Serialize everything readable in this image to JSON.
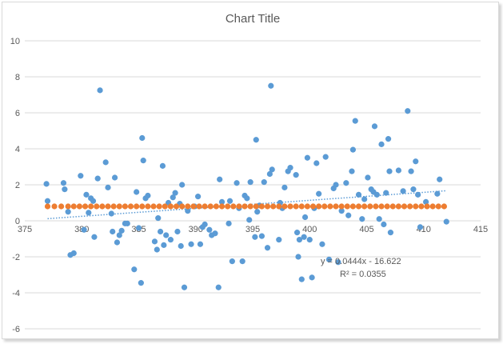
{
  "chart_data": {
    "type": "scatter",
    "title": "Chart Title",
    "xlim": [
      375,
      415
    ],
    "ylim": [
      -6,
      10
    ],
    "x_ticks": [
      375,
      380,
      385,
      390,
      395,
      400,
      405,
      410,
      415
    ],
    "y_ticks": [
      -6,
      -4,
      -2,
      0,
      2,
      4,
      6,
      8,
      10
    ],
    "x_tick_labels": [
      "375",
      "380",
      "385",
      "390",
      "395",
      "400",
      "405",
      "410",
      "415"
    ],
    "y_tick_labels": [
      "-6",
      "-4",
      "-2",
      "0",
      "2",
      "4",
      "6",
      "8",
      "10"
    ],
    "grid": true,
    "legend": false,
    "colors": {
      "series_blue": "#5b9bd5",
      "series_orange": "#ed7d31",
      "trendline": "#5b9bd5",
      "gridline": "#d9d9d9",
      "text": "#595959"
    },
    "series": [
      {
        "color": "#5b9bd5",
        "points": [
          [
            376.9,
            2.05
          ],
          [
            377.0,
            1.1
          ],
          [
            378.4,
            2.1
          ],
          [
            378.5,
            1.75
          ],
          [
            378.8,
            0.5
          ],
          [
            379.0,
            -1.9
          ],
          [
            379.3,
            -1.8
          ],
          [
            379.9,
            2.5
          ],
          [
            380.2,
            -0.5
          ],
          [
            380.4,
            1.45
          ],
          [
            380.6,
            0.45
          ],
          [
            380.8,
            1.25
          ],
          [
            381.0,
            1.1
          ],
          [
            381.1,
            -0.9
          ],
          [
            381.4,
            2.35
          ],
          [
            381.6,
            7.25
          ],
          [
            382.1,
            3.25
          ],
          [
            382.3,
            1.85
          ],
          [
            382.6,
            0.4
          ],
          [
            382.7,
            -0.6
          ],
          [
            382.9,
            2.4
          ],
          [
            383.1,
            -1.2
          ],
          [
            383.3,
            -0.8
          ],
          [
            383.5,
            -0.55
          ],
          [
            383.8,
            -0.15
          ],
          [
            384.0,
            -0.15
          ],
          [
            384.6,
            -2.7
          ],
          [
            384.8,
            1.6
          ],
          [
            385.0,
            -0.4
          ],
          [
            385.2,
            -3.45
          ],
          [
            385.3,
            4.6
          ],
          [
            385.4,
            3.35
          ],
          [
            385.6,
            1.25
          ],
          [
            385.8,
            1.4
          ],
          [
            386.4,
            -1.15
          ],
          [
            386.6,
            -1.6
          ],
          [
            386.7,
            0.15
          ],
          [
            386.9,
            -0.6
          ],
          [
            387.1,
            3.05
          ],
          [
            387.2,
            -1.35
          ],
          [
            387.4,
            -0.8
          ],
          [
            387.6,
            1.0
          ],
          [
            387.8,
            -1.05
          ],
          [
            388.0,
            1.3
          ],
          [
            388.2,
            1.55
          ],
          [
            388.4,
            -0.6
          ],
          [
            388.6,
            0.95
          ],
          [
            388.7,
            -1.4
          ],
          [
            388.8,
            2.0
          ],
          [
            389.0,
            -3.7
          ],
          [
            389.3,
            0.55
          ],
          [
            389.6,
            -1.3
          ],
          [
            389.9,
            0.8
          ],
          [
            390.2,
            1.35
          ],
          [
            390.4,
            -1.3
          ],
          [
            390.6,
            -0.35
          ],
          [
            390.8,
            -0.2
          ],
          [
            391.2,
            -0.5
          ],
          [
            391.4,
            -0.8
          ],
          [
            391.7,
            -0.7
          ],
          [
            392.0,
            -3.7
          ],
          [
            392.1,
            2.3
          ],
          [
            392.3,
            1.05
          ],
          [
            392.9,
            -0.15
          ],
          [
            393.0,
            1.1
          ],
          [
            393.2,
            -2.25
          ],
          [
            393.6,
            2.1
          ],
          [
            393.8,
            0.7
          ],
          [
            394.1,
            -2.25
          ],
          [
            394.3,
            1.4
          ],
          [
            394.5,
            1.25
          ],
          [
            394.7,
            0.05
          ],
          [
            394.8,
            2.15
          ],
          [
            395.2,
            -0.9
          ],
          [
            395.3,
            4.5
          ],
          [
            395.4,
            0.5
          ],
          [
            395.6,
            0.85
          ],
          [
            395.8,
            -0.85
          ],
          [
            396.0,
            2.15
          ],
          [
            396.3,
            -1.5
          ],
          [
            396.5,
            2.6
          ],
          [
            396.6,
            7.5
          ],
          [
            396.7,
            2.85
          ],
          [
            397.3,
            -1.05
          ],
          [
            397.4,
            1.0
          ],
          [
            397.6,
            0.7
          ],
          [
            397.8,
            1.85
          ],
          [
            398.1,
            2.75
          ],
          [
            398.3,
            2.95
          ],
          [
            398.8,
            2.55
          ],
          [
            398.9,
            -0.65
          ],
          [
            399.0,
            -2.0
          ],
          [
            399.1,
            -1.05
          ],
          [
            399.3,
            -3.25
          ],
          [
            399.5,
            -0.9
          ],
          [
            399.6,
            0.2
          ],
          [
            399.8,
            3.5
          ],
          [
            400.0,
            -1.05
          ],
          [
            400.2,
            -3.15
          ],
          [
            400.4,
            0.7
          ],
          [
            400.6,
            3.2
          ],
          [
            400.8,
            1.5
          ],
          [
            401.1,
            -1.3
          ],
          [
            401.4,
            3.55
          ],
          [
            401.7,
            -2.15
          ],
          [
            402.1,
            1.8
          ],
          [
            402.3,
            2.0
          ],
          [
            402.5,
            -2.3
          ],
          [
            402.8,
            0.55
          ],
          [
            403.2,
            2.1
          ],
          [
            403.4,
            0.3
          ],
          [
            403.7,
            2.75
          ],
          [
            403.8,
            3.95
          ],
          [
            404.0,
            5.55
          ],
          [
            404.3,
            1.45
          ],
          [
            404.6,
            0.1
          ],
          [
            404.8,
            1.2
          ],
          [
            405.1,
            2.4
          ],
          [
            405.4,
            1.75
          ],
          [
            405.6,
            1.6
          ],
          [
            405.7,
            5.25
          ],
          [
            405.9,
            1.45
          ],
          [
            406.1,
            0.1
          ],
          [
            406.3,
            4.25
          ],
          [
            406.5,
            -0.2
          ],
          [
            406.7,
            1.55
          ],
          [
            406.9,
            4.55
          ],
          [
            407.0,
            2.75
          ],
          [
            407.1,
            -0.65
          ],
          [
            407.8,
            2.8
          ],
          [
            408.2,
            1.65
          ],
          [
            408.6,
            6.1
          ],
          [
            408.9,
            2.75
          ],
          [
            409.1,
            1.75
          ],
          [
            409.3,
            3.3
          ],
          [
            409.5,
            1.45
          ],
          [
            409.7,
            -0.35
          ],
          [
            410.2,
            1.05
          ],
          [
            411.2,
            1.5
          ],
          [
            411.4,
            2.3
          ],
          [
            412.0,
            -0.05
          ]
        ]
      },
      {
        "color": "#ed7d31",
        "y": 0.8,
        "x": [
          377.0,
          377.6,
          378.2,
          378.8,
          379.3,
          379.8,
          380.3,
          380.8,
          381.3,
          381.8,
          382.3,
          382.8,
          383.3,
          383.8,
          384.3,
          384.8,
          385.3,
          385.8,
          386.3,
          386.8,
          387.3,
          387.8,
          388.3,
          388.8,
          389.3,
          389.8,
          390.3,
          390.8,
          391.3,
          391.8,
          392.3,
          392.8,
          393.3,
          393.8,
          394.3,
          394.8,
          395.3,
          395.8,
          396.3,
          396.8,
          397.3,
          397.8,
          398.3,
          398.8,
          399.3,
          399.8,
          400.3,
          400.8,
          401.3,
          401.8,
          402.3,
          402.8,
          403.3,
          403.8,
          404.3,
          404.8,
          405.3,
          405.8,
          406.3,
          406.8,
          407.3,
          407.8,
          408.3,
          408.8,
          409.3,
          409.8,
          410.3,
          410.8,
          411.3,
          411.8
        ]
      }
    ],
    "trendline": {
      "type": "linear",
      "slope": 0.0444,
      "intercept": -16.622,
      "x_range": [
        377.0,
        412.0
      ],
      "equation": "y = 0.0444x - 16.622",
      "r_squared": "R² = 0.0355"
    }
  }
}
